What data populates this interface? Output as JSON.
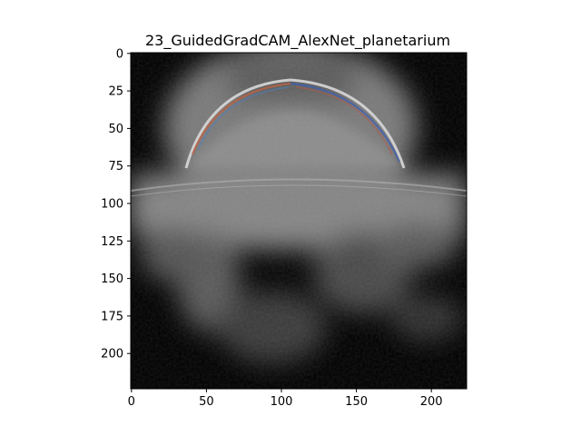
{
  "chart_data": {
    "type": "heatmap",
    "title": "23_GuidedGradCAM_AlexNet_planetarium",
    "xlabel": "",
    "ylabel": "",
    "xlim": [
      0,
      224
    ],
    "ylim": [
      224,
      0
    ],
    "x_ticks": [
      0,
      50,
      100,
      150,
      200
    ],
    "y_ticks": [
      0,
      25,
      50,
      75,
      100,
      125,
      150,
      175,
      200
    ],
    "image_size": [
      224,
      224
    ],
    "colormap": "grayscale with faint RGB edge highlights",
    "grid": false,
    "legend": "none",
    "description_colors": {
      "background": "#000000",
      "dome_edge_warm": "#c06040",
      "dome_edge_cool": "#4060b0"
    }
  }
}
